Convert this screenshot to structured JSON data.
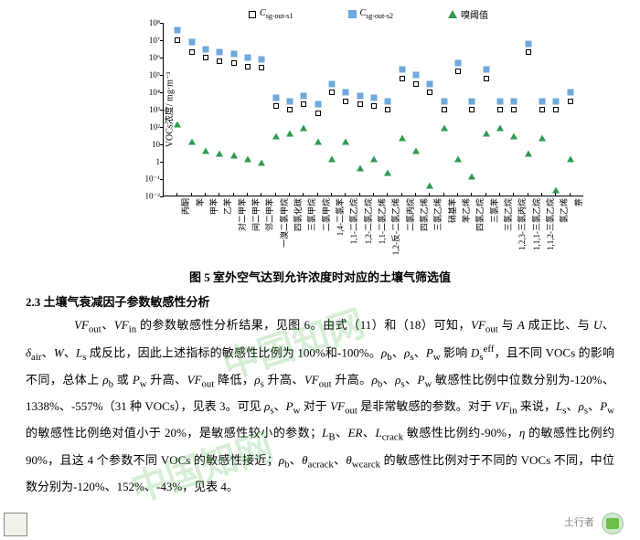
{
  "chart": {
    "type": "scatter-log",
    "legend": [
      {
        "key": "s1",
        "label_html": "C<sub>sg-out-s1</sub>",
        "marker": "open-square",
        "color": "#000000"
      },
      {
        "key": "s2",
        "label_html": "C<sub>sg-out-s2</sub>",
        "marker": "filled-square",
        "color": "#6fa8dc"
      },
      {
        "key": "th",
        "label_html": "嗅阈值",
        "marker": "triangle",
        "color": "#2e9b4f"
      }
    ],
    "ylabel": "VOCs浓度/ mg·m⁻³",
    "yticks": [
      {
        "exp": -2,
        "label": "10⁻²"
      },
      {
        "exp": -1,
        "label": "10⁻¹"
      },
      {
        "exp": 0,
        "label": "1"
      },
      {
        "exp": 1,
        "label": "10"
      },
      {
        "exp": 2,
        "label": "10²"
      },
      {
        "exp": 3,
        "label": "10³"
      },
      {
        "exp": 4,
        "label": "10⁴"
      },
      {
        "exp": 5,
        "label": "10⁵"
      },
      {
        "exp": 6,
        "label": "10⁶"
      },
      {
        "exp": 7,
        "label": "10⁷"
      },
      {
        "exp": 8,
        "label": "10⁸"
      }
    ],
    "ylim_exp": [
      -2,
      8
    ],
    "colors": {
      "s1_border": "#000000",
      "s2_fill": "#6fa8dc",
      "th_fill": "#2e9b4f",
      "axis": "#000000",
      "bg": "#ffffff"
    },
    "font_size_axis": 9,
    "categories": [
      "丙酮",
      "苯",
      "甲苯",
      "乙苯",
      "对二甲苯",
      "间二甲苯",
      "邻二甲苯",
      "一溴二氯甲烷",
      "四氯化碳",
      "三氯甲烷",
      "二氯甲烷",
      "1,4-二氯苯",
      "1,1-二氯乙烷",
      "1,2-二氯乙烷",
      "1,1-二氯乙烯",
      "1,2-反-二氯乙烯",
      "二氯丙烷",
      "四氯乙烯",
      "三氯乙烯",
      "硝基苯",
      "苯乙烯",
      "四氯乙烷",
      "三氯苯",
      "三氯乙烷",
      "1,2,3-三氯丙烷",
      "1,1,1-三氯乙烷",
      "1,1,2-三氯乙烷",
      "氯乙烯",
      "萘"
    ],
    "series": {
      "s1_exp": [
        7.0,
        6.3,
        6.0,
        5.8,
        5.7,
        5.5,
        5.4,
        3.2,
        3.0,
        3.3,
        2.8,
        4.0,
        3.5,
        3.3,
        3.2,
        3.0,
        4.8,
        4.5,
        4.0,
        3.0,
        5.2,
        3.0,
        4.8,
        3.0,
        3.0,
        6.3,
        3.0,
        3.0,
        3.5
      ],
      "s2_exp": [
        7.6,
        6.9,
        6.5,
        6.3,
        6.2,
        6.0,
        5.9,
        3.7,
        3.5,
        3.8,
        3.3,
        4.5,
        4.0,
        3.8,
        3.7,
        3.5,
        5.3,
        5.0,
        4.5,
        3.5,
        5.7,
        3.5,
        5.3,
        3.5,
        3.5,
        6.8,
        3.5,
        3.5,
        4.0
      ],
      "th_exp": [
        2.0,
        1.0,
        0.5,
        0.3,
        0.2,
        0.0,
        -0.2,
        1.3,
        1.5,
        1.8,
        1.0,
        0.0,
        1.0,
        -0.5,
        0.0,
        -0.8,
        1.2,
        0.5,
        -1.5,
        1.8,
        0.0,
        -1.0,
        1.5,
        1.8,
        1.3,
        0.3,
        1.2,
        -1.8,
        0.0
      ]
    }
  },
  "caption": "图 5  室外空气达到允许浓度时对应的土壤气筛选值",
  "heading": "2.3 土壤气衰减因子参数敏感性分析",
  "paragraph": "　　<span class=\"it\">VF</span><sub>out</sub>、<span class=\"it\">VF</span><sub>in</sub> 的参数敏感性分析结果，见图 6。由式（11）和（18）可知，<span class=\"it\">VF</span><sub>out</sub> 与 <span class=\"it\">A</span> 成正比、与 <span class=\"it\">U</span>、<span class=\"it\">δ</span><sub>air</sub>、<span class=\"it\">W</span>、<span class=\"it\">L</span><sub>s</sub> 成反比，因此上述指标的敏感性比例为 100%和-100%。<span class=\"it\">ρ</span><sub>b</sub>、<span class=\"it\">ρ</span><sub>s</sub>、<span class=\"it\">P</span><sub>w</sub> 影响 <span class=\"it\">D</span><sub>s</sub><sup>eff</sup>，且不同 VOCs 的影响不同，总体上 <span class=\"it\">ρ</span><sub>b</sub> 或 <span class=\"it\">P</span><sub>w</sub> 升高、<span class=\"it\">VF</span><sub>out</sub> 降低，<span class=\"it\">ρ</span><sub>s</sub> 升高、<span class=\"it\">VF</span><sub>out</sub> 升高。<span class=\"it\">ρ</span><sub>b</sub>、<span class=\"it\">ρ</span><sub>s</sub>、<span class=\"it\">P</span><sub>w</sub> 敏感性比例中位数分别为-120%、1338%、-557%（31 种 VOCs），见表 3。可见 <span class=\"it\">ρ</span><sub>s</sub>、<span class=\"it\">P</span><sub>w</sub> 对于 <span class=\"it\">VF</span><sub>out</sub> 是非常敏感的参数。对于 <span class=\"it\">VF</span><sub>in</sub> 来说，<span class=\"it\">L</span><sub>s</sub>、<span class=\"it\">ρ</span><sub>s</sub>、<span class=\"it\">P</span><sub>w</sub> 的敏感性比例绝对值小于 20%，是敏感性较小的参数；<span class=\"it\">L</span><sub>B</sub>、<span class=\"it\">ER</span>、<span class=\"it\">L</span><sub>crack</sub> 敏感性比例约-90%，<span class=\"it\">η</span> 的敏感性比例约 90%，且这 4 个参数不同 VOCs 的敏感性接近；<span class=\"it\">ρ</span><sub>b</sub>、<span class=\"it\">θ</span><sub>acrack</sub>、<span class=\"it\">θ</span><sub>wcarck</sub> 的敏感性比例对于不同的 VOCs 不同，中位数分别为-120%、152%、-43%，见表 4。",
  "footer_text": "土行者",
  "watermark_text": "中国知网"
}
